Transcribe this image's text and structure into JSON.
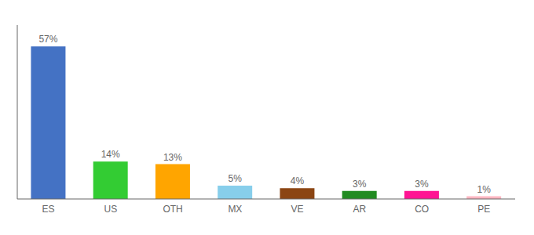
{
  "chart_data": {
    "type": "bar",
    "categories": [
      "ES",
      "US",
      "OTH",
      "MX",
      "VE",
      "AR",
      "CO",
      "PE"
    ],
    "values": [
      57,
      14,
      13,
      5,
      4,
      3,
      3,
      1
    ],
    "value_labels": [
      "57%",
      "14%",
      "13%",
      "5%",
      "4%",
      "3%",
      "3%",
      "1%"
    ],
    "colors": [
      "#4472C4",
      "#33CC33",
      "#FFA500",
      "#87CEEB",
      "#8B4513",
      "#228B22",
      "#FF1493",
      "#FFB6C1"
    ],
    "ylim": [
      0,
      65
    ],
    "data_labels": true,
    "tick_labels": "x",
    "grid": false
  }
}
